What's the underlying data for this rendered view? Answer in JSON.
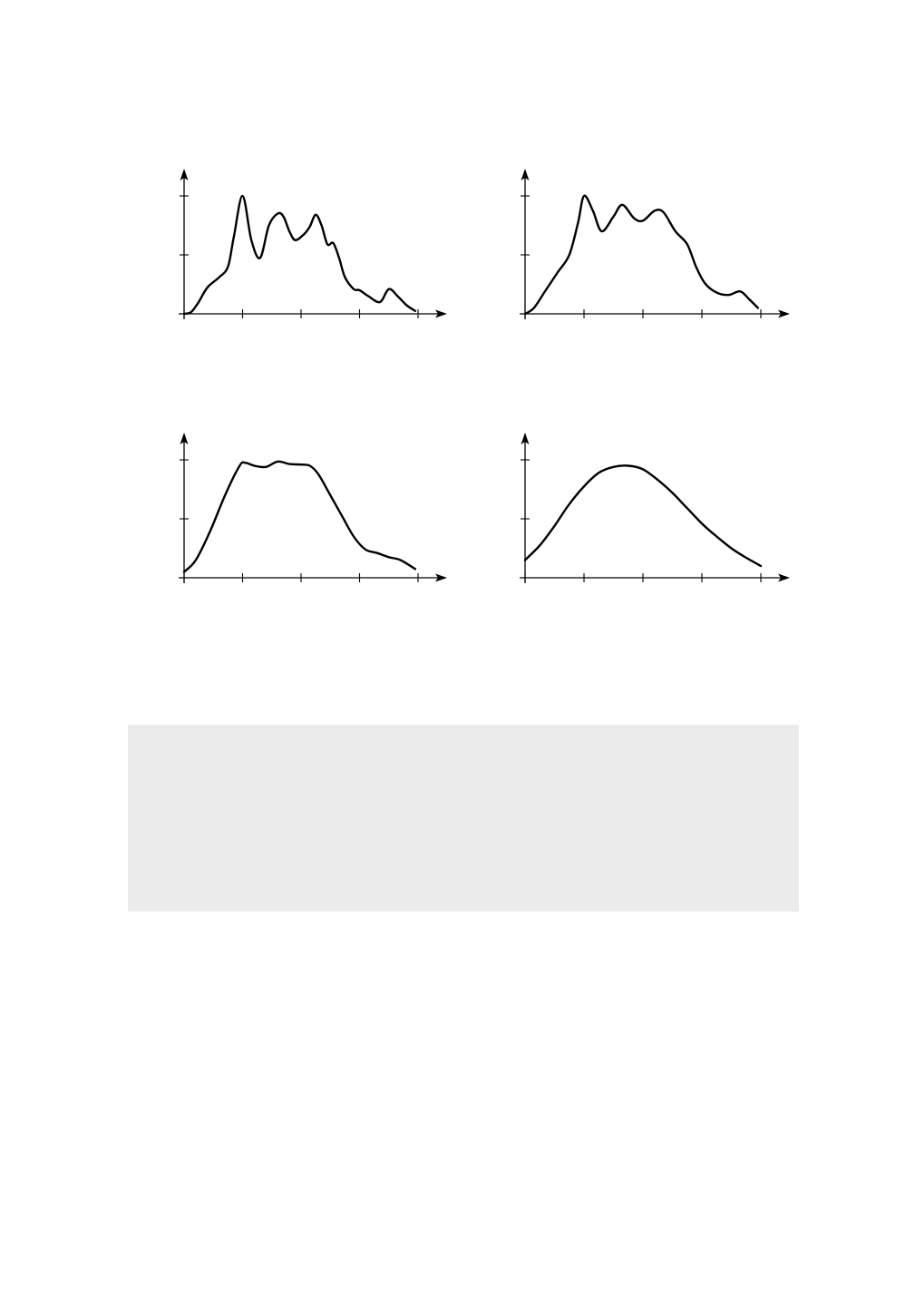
{
  "colors": {
    "line": "#000000",
    "axis": "#000000",
    "background": "#ffffff",
    "panel": "#ebebeb"
  },
  "chart_data": [
    {
      "type": "line",
      "title": "",
      "xlabel": "",
      "ylabel": "",
      "grid": false,
      "xlim": [
        0,
        4
      ],
      "ylim": [
        0,
        2
      ],
      "x_ticks": [
        0,
        1,
        2,
        3,
        4
      ],
      "y_ticks": [
        0,
        1,
        2
      ],
      "series": [
        {
          "x": [
            0,
            0.12,
            0.25,
            0.4,
            0.6,
            0.75,
            0.85,
            1.0,
            1.15,
            1.3,
            1.45,
            1.6,
            1.7,
            1.8,
            1.9,
            2.05,
            2.15,
            2.25,
            2.35,
            2.45,
            2.55,
            2.65,
            2.75,
            2.9,
            3.0,
            3.15,
            3.35,
            3.5,
            3.65,
            3.8,
            3.95
          ],
          "values": [
            0,
            0.03,
            0.2,
            0.45,
            0.62,
            0.8,
            1.3,
            2.0,
            1.25,
            0.95,
            1.5,
            1.7,
            1.65,
            1.4,
            1.25,
            1.35,
            1.48,
            1.68,
            1.5,
            1.18,
            1.2,
            0.95,
            0.62,
            0.42,
            0.4,
            0.3,
            0.2,
            0.42,
            0.3,
            0.15,
            0.05
          ]
        }
      ]
    },
    {
      "type": "line",
      "title": "",
      "xlabel": "",
      "ylabel": "",
      "grid": false,
      "xlim": [
        0,
        4
      ],
      "ylim": [
        0,
        2
      ],
      "x_ticks": [
        0,
        1,
        2,
        3,
        4
      ],
      "y_ticks": [
        0,
        1,
        2
      ],
      "series": [
        {
          "x": [
            0,
            0.15,
            0.35,
            0.55,
            0.75,
            0.9,
            1.0,
            1.15,
            1.3,
            1.5,
            1.65,
            1.85,
            2.0,
            2.2,
            2.35,
            2.55,
            2.75,
            2.9,
            3.05,
            3.25,
            3.45,
            3.65,
            3.8,
            3.95
          ],
          "values": [
            0,
            0.1,
            0.4,
            0.7,
            1.0,
            1.55,
            2.0,
            1.75,
            1.4,
            1.65,
            1.85,
            1.62,
            1.58,
            1.75,
            1.72,
            1.4,
            1.18,
            0.8,
            0.52,
            0.36,
            0.32,
            0.38,
            0.25,
            0.1
          ]
        }
      ]
    },
    {
      "type": "line",
      "title": "",
      "xlabel": "",
      "ylabel": "",
      "grid": false,
      "xlim": [
        0,
        4
      ],
      "ylim": [
        0,
        2
      ],
      "x_ticks": [
        0,
        1,
        2,
        3,
        4
      ],
      "y_ticks": [
        0,
        1,
        2
      ],
      "series": [
        {
          "x": [
            0,
            0.2,
            0.45,
            0.7,
            0.95,
            1.05,
            1.2,
            1.4,
            1.6,
            1.8,
            2.0,
            2.15,
            2.3,
            2.5,
            2.7,
            2.9,
            3.1,
            3.3,
            3.5,
            3.7,
            3.95
          ],
          "values": [
            0.1,
            0.3,
            0.8,
            1.4,
            1.9,
            1.95,
            1.9,
            1.88,
            1.97,
            1.93,
            1.92,
            1.9,
            1.75,
            1.4,
            1.05,
            0.7,
            0.48,
            0.42,
            0.35,
            0.3,
            0.15
          ]
        }
      ]
    },
    {
      "type": "line",
      "title": "",
      "xlabel": "",
      "ylabel": "",
      "grid": false,
      "xlim": [
        0,
        4
      ],
      "ylim": [
        0,
        2
      ],
      "x_ticks": [
        0,
        1,
        2,
        3,
        4
      ],
      "y_ticks": [
        0,
        1,
        2
      ],
      "series": [
        {
          "x": [
            0,
            0.25,
            0.5,
            0.75,
            1.0,
            1.25,
            1.5,
            1.75,
            2.0,
            2.25,
            2.5,
            2.75,
            3.0,
            3.25,
            3.5,
            3.75,
            4.0
          ],
          "values": [
            0.3,
            0.55,
            0.88,
            1.25,
            1.55,
            1.78,
            1.88,
            1.9,
            1.84,
            1.66,
            1.44,
            1.18,
            0.92,
            0.7,
            0.5,
            0.34,
            0.2
          ]
        }
      ]
    }
  ]
}
